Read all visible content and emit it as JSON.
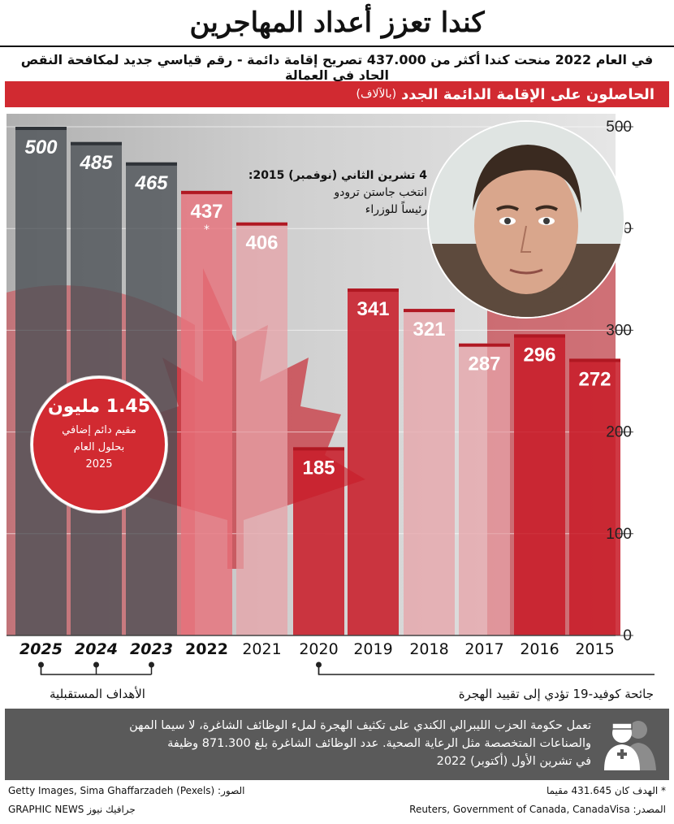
{
  "header": {
    "title": "كندا تعزز أعداد المهاجرين",
    "subtitle": "في العام 2022 منحت كندا أكثر من 437.000 تصريح إقامة دائمة - رقم قياسي جديد لمكافحة النقص الحاد في العمالة"
  },
  "banner": {
    "title": "الحاصلون على الإقامة الدائمة الجدد",
    "unit": "(بالآلاف)"
  },
  "chart_data": {
    "type": "bar",
    "categories": [
      "2025",
      "2024",
      "2023",
      "2022",
      "2021",
      "2020",
      "2019",
      "2018",
      "2017",
      "2016",
      "2015"
    ],
    "values": [
      500,
      485,
      465,
      437,
      406,
      185,
      341,
      321,
      287,
      296,
      272
    ],
    "value_labels": [
      "500",
      "485",
      "465",
      "437",
      "406",
      "185",
      "341",
      "321",
      "287",
      "296",
      "272"
    ],
    "bar_groups": [
      "target",
      "target",
      "target",
      "record",
      "actual",
      "actual",
      "actual",
      "actual",
      "actual",
      "actual",
      "actual"
    ],
    "ylim": [
      0,
      500
    ],
    "y_ticks": [
      0,
      100,
      200,
      300,
      400,
      500
    ],
    "y_tick_labels": [
      "0",
      "100",
      "200",
      "300",
      "400",
      "500"
    ],
    "grid": true,
    "footnote_marker": "*",
    "colors": {
      "target": "#4a4f55",
      "record": "#e8707a",
      "actual_light": "#e7a3a8",
      "actual": "#c81e2a"
    }
  },
  "annotation": {
    "date": "4 تشرين الثاني (نوفمبر) 2015:",
    "line1": "انتخب جاستن ترودو",
    "line2": "رئيساً للوزراء",
    "photo": "justin-trudeau-portrait"
  },
  "stat": {
    "value": "1.45 مليون",
    "line1": "مقيم دائم إضافي",
    "line2": "بحلول العام",
    "line3": "2025"
  },
  "brackets": {
    "future_label": "الأهداف المستقبلية",
    "covid_label": "جائحة كوفيد-19 تؤدي إلى تقييد الهجرة"
  },
  "info": {
    "line1": "تعمل حكومة الحزب الليبرالي الكندي على تكثيف الهجرة لملء الوظائف الشاغرة، لا سيما المهن",
    "line2": "والصناعات المتخصصة مثل الرعاية الصحية. عدد الوظائف الشاغرة بلغ 871.300 وظيفة",
    "line3": "في تشرين الأول (أكتوبر) 2022",
    "icon": "health-workers-icon"
  },
  "footer": {
    "footnote": "* الهدف كان 431.645 مقيما",
    "source": "المصدر: Reuters, Government of Canada, CanadaVisa",
    "photo_credit": "الصور: Getty Images, Sima Ghaffarzadeh (Pexels)",
    "logo": "GRAPHIC NEWS جرافيك نيوز"
  }
}
